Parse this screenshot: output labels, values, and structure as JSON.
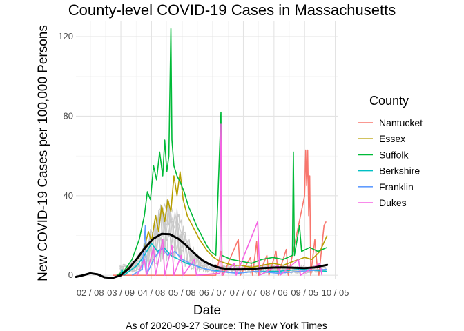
{
  "chart_data": {
    "type": "line",
    "title": "County-level COVID-19 Cases in Massachusetts",
    "xlabel": "Date",
    "ylabel": "New COVID-19 Cases per 100,000 Persons",
    "caption": "As of 2020-09-27 Source: The New York Times",
    "legend_title": "County",
    "legend_position": "right",
    "grid": true,
    "xlim": [
      "2020-01-25",
      "2020-10-08"
    ],
    "ylim": [
      -2,
      128
    ],
    "x_ticks": [
      {
        "date": "2020-02-08",
        "label": "02 / 08"
      },
      {
        "date": "2020-03-09",
        "label": "03 / 09"
      },
      {
        "date": "2020-04-08",
        "label": "04 / 08"
      },
      {
        "date": "2020-05-08",
        "label": "05 / 08"
      },
      {
        "date": "2020-06-07",
        "label": "06 / 07"
      },
      {
        "date": "2020-07-07",
        "label": "07 / 07"
      },
      {
        "date": "2020-08-06",
        "label": "08 / 06"
      },
      {
        "date": "2020-09-05",
        "label": "09 / 05"
      },
      {
        "date": "2020-10-05",
        "label": "10 / 05"
      }
    ],
    "y_ticks": [
      0,
      40,
      80,
      120
    ],
    "highlighted_series": [
      {
        "name": "Nantucket",
        "color": "#F8766D",
        "points": [
          [
            "2020-03-01",
            0
          ],
          [
            "2020-06-10",
            0
          ],
          [
            "2020-06-15",
            12
          ],
          [
            "2020-06-17",
            0
          ],
          [
            "2020-07-02",
            18
          ],
          [
            "2020-07-04",
            0
          ],
          [
            "2020-07-14",
            9
          ],
          [
            "2020-07-16",
            0
          ],
          [
            "2020-07-20",
            17
          ],
          [
            "2020-07-22",
            0
          ],
          [
            "2020-07-30",
            10
          ],
          [
            "2020-08-01",
            0
          ],
          [
            "2020-08-08",
            12
          ],
          [
            "2020-08-10",
            0
          ],
          [
            "2020-08-18",
            13
          ],
          [
            "2020-08-20",
            0
          ],
          [
            "2020-09-05",
            40
          ],
          [
            "2020-09-06",
            63
          ],
          [
            "2020-09-07",
            45
          ],
          [
            "2020-09-08",
            63
          ],
          [
            "2020-09-09",
            30
          ],
          [
            "2020-09-10",
            50
          ],
          [
            "2020-09-11",
            0
          ],
          [
            "2020-09-15",
            18
          ],
          [
            "2020-09-17",
            6
          ],
          [
            "2020-09-19",
            0
          ],
          [
            "2020-09-24",
            25
          ],
          [
            "2020-09-26",
            27
          ]
        ]
      },
      {
        "name": "Essex",
        "color": "#B79F00",
        "points": [
          [
            "2020-03-05",
            0
          ],
          [
            "2020-03-15",
            3
          ],
          [
            "2020-03-25",
            8
          ],
          [
            "2020-04-01",
            14
          ],
          [
            "2020-04-05",
            22
          ],
          [
            "2020-04-08",
            17
          ],
          [
            "2020-04-12",
            30
          ],
          [
            "2020-04-15",
            22
          ],
          [
            "2020-04-18",
            35
          ],
          [
            "2020-04-21",
            27
          ],
          [
            "2020-04-24",
            38
          ],
          [
            "2020-04-27",
            32
          ],
          [
            "2020-04-30",
            50
          ],
          [
            "2020-05-03",
            40
          ],
          [
            "2020-05-06",
            52
          ],
          [
            "2020-05-09",
            38
          ],
          [
            "2020-05-13",
            30
          ],
          [
            "2020-05-17",
            26
          ],
          [
            "2020-05-21",
            22
          ],
          [
            "2020-05-25",
            18
          ],
          [
            "2020-05-29",
            15
          ],
          [
            "2020-06-02",
            12
          ],
          [
            "2020-06-08",
            9
          ],
          [
            "2020-06-14",
            7
          ],
          [
            "2020-06-20",
            6
          ],
          [
            "2020-06-27",
            5
          ],
          [
            "2020-07-05",
            5
          ],
          [
            "2020-07-15",
            4
          ],
          [
            "2020-07-25",
            5
          ],
          [
            "2020-08-05",
            6
          ],
          [
            "2020-08-15",
            5
          ],
          [
            "2020-08-25",
            7
          ],
          [
            "2020-09-05",
            9
          ],
          [
            "2020-09-12",
            8
          ],
          [
            "2020-09-20",
            12
          ],
          [
            "2020-09-27",
            20
          ]
        ]
      },
      {
        "name": "Suffolk",
        "color": "#00BA38",
        "points": [
          [
            "2020-03-05",
            0
          ],
          [
            "2020-03-12",
            2
          ],
          [
            "2020-03-20",
            8
          ],
          [
            "2020-03-27",
            18
          ],
          [
            "2020-04-01",
            30
          ],
          [
            "2020-04-04",
            42
          ],
          [
            "2020-04-07",
            38
          ],
          [
            "2020-04-10",
            55
          ],
          [
            "2020-04-13",
            48
          ],
          [
            "2020-04-16",
            62
          ],
          [
            "2020-04-19",
            50
          ],
          [
            "2020-04-21",
            68
          ],
          [
            "2020-04-23",
            52
          ],
          [
            "2020-04-25",
            60
          ],
          [
            "2020-04-27",
            124
          ],
          [
            "2020-04-28",
            68
          ],
          [
            "2020-04-30",
            55
          ],
          [
            "2020-05-03",
            50
          ],
          [
            "2020-05-06",
            47
          ],
          [
            "2020-05-10",
            42
          ],
          [
            "2020-05-14",
            35
          ],
          [
            "2020-05-18",
            30
          ],
          [
            "2020-05-22",
            25
          ],
          [
            "2020-05-27",
            20
          ],
          [
            "2020-06-01",
            15
          ],
          [
            "2020-06-05",
            12
          ],
          [
            "2020-06-10",
            10
          ],
          [
            "2020-06-15",
            82
          ],
          [
            "2020-06-16",
            10
          ],
          [
            "2020-06-25",
            8
          ],
          [
            "2020-07-05",
            7
          ],
          [
            "2020-07-15",
            6
          ],
          [
            "2020-07-25",
            8
          ],
          [
            "2020-08-05",
            9
          ],
          [
            "2020-08-15",
            8
          ],
          [
            "2020-08-24",
            10
          ],
          [
            "2020-08-25",
            62
          ],
          [
            "2020-08-26",
            10
          ],
          [
            "2020-08-31",
            25
          ],
          [
            "2020-09-02",
            12
          ],
          [
            "2020-09-10",
            14
          ],
          [
            "2020-09-18",
            12
          ],
          [
            "2020-09-27",
            14
          ]
        ]
      },
      {
        "name": "Berkshire",
        "color": "#00BFC4",
        "points": [
          [
            "2020-03-09",
            0
          ],
          [
            "2020-03-10",
            3
          ],
          [
            "2020-03-12",
            0
          ],
          [
            "2020-03-25",
            5
          ],
          [
            "2020-04-01",
            10
          ],
          [
            "2020-04-08",
            16
          ],
          [
            "2020-04-14",
            12
          ],
          [
            "2020-04-20",
            14
          ],
          [
            "2020-04-27",
            10
          ],
          [
            "2020-05-05",
            8
          ],
          [
            "2020-05-12",
            6
          ],
          [
            "2020-05-20",
            5
          ],
          [
            "2020-06-01",
            3
          ],
          [
            "2020-06-15",
            2
          ],
          [
            "2020-07-01",
            1
          ],
          [
            "2020-07-20",
            2
          ],
          [
            "2020-08-10",
            2
          ],
          [
            "2020-09-01",
            3
          ],
          [
            "2020-09-27",
            2
          ]
        ]
      },
      {
        "name": "Franklin",
        "color": "#619CFF",
        "points": [
          [
            "2020-03-20",
            0
          ],
          [
            "2020-03-30",
            3
          ],
          [
            "2020-04-02",
            25
          ],
          [
            "2020-04-03",
            0
          ],
          [
            "2020-04-10",
            8
          ],
          [
            "2020-04-18",
            14
          ],
          [
            "2020-04-24",
            10
          ],
          [
            "2020-05-01",
            12
          ],
          [
            "2020-05-08",
            8
          ],
          [
            "2020-05-16",
            6
          ],
          [
            "2020-05-25",
            4
          ],
          [
            "2020-06-10",
            2
          ],
          [
            "2020-07-01",
            1
          ],
          [
            "2020-07-20",
            2
          ],
          [
            "2020-08-10",
            1
          ],
          [
            "2020-09-01",
            2
          ],
          [
            "2020-09-27",
            3
          ]
        ]
      },
      {
        "name": "Dukes",
        "color": "#F564E3",
        "points": [
          [
            "2020-03-25",
            0
          ],
          [
            "2020-04-01",
            8
          ],
          [
            "2020-04-03",
            0
          ],
          [
            "2020-04-10",
            14
          ],
          [
            "2020-04-12",
            0
          ],
          [
            "2020-04-19",
            18
          ],
          [
            "2020-04-21",
            0
          ],
          [
            "2020-04-28",
            15
          ],
          [
            "2020-04-30",
            0
          ],
          [
            "2020-05-07",
            10
          ],
          [
            "2020-05-09",
            0
          ],
          [
            "2020-05-20",
            8
          ],
          [
            "2020-05-22",
            0
          ],
          [
            "2020-06-14",
            1
          ],
          [
            "2020-06-15",
            76
          ],
          [
            "2020-06-16",
            0
          ],
          [
            "2020-06-28",
            6
          ],
          [
            "2020-06-30",
            0
          ],
          [
            "2020-07-21",
            27
          ],
          [
            "2020-07-23",
            0
          ],
          [
            "2020-08-10",
            5
          ],
          [
            "2020-08-12",
            0
          ],
          [
            "2020-08-30",
            8
          ],
          [
            "2020-09-01",
            0
          ],
          [
            "2020-09-20",
            6
          ],
          [
            "2020-09-22",
            0
          ]
        ]
      }
    ],
    "background_counties_color": "#C8C8C8",
    "trend_line": {
      "color": "#000000",
      "points": [
        [
          "2020-01-25",
          -0.8
        ],
        [
          "2020-02-01",
          0
        ],
        [
          "2020-02-08",
          1.0
        ],
        [
          "2020-02-15",
          0.5
        ],
        [
          "2020-02-22",
          -1.0
        ],
        [
          "2020-03-01",
          -1.3
        ],
        [
          "2020-03-09",
          0
        ],
        [
          "2020-03-17",
          3.5
        ],
        [
          "2020-03-25",
          8.5
        ],
        [
          "2020-04-02",
          14
        ],
        [
          "2020-04-10",
          18.5
        ],
        [
          "2020-04-18",
          20.8
        ],
        [
          "2020-04-26",
          20.6
        ],
        [
          "2020-05-04",
          18.5
        ],
        [
          "2020-05-12",
          15
        ],
        [
          "2020-05-20",
          11
        ],
        [
          "2020-05-28",
          7.5
        ],
        [
          "2020-06-05",
          5.2
        ],
        [
          "2020-06-15",
          3.6
        ],
        [
          "2020-06-25",
          3.0
        ],
        [
          "2020-07-05",
          3.0
        ],
        [
          "2020-07-15",
          3.2
        ],
        [
          "2020-07-25",
          3.6
        ],
        [
          "2020-08-05",
          3.9
        ],
        [
          "2020-08-15",
          4.0
        ],
        [
          "2020-08-25",
          3.8
        ],
        [
          "2020-09-05",
          3.6
        ],
        [
          "2020-09-15",
          4.0
        ],
        [
          "2020-09-27",
          5.2
        ]
      ]
    }
  }
}
